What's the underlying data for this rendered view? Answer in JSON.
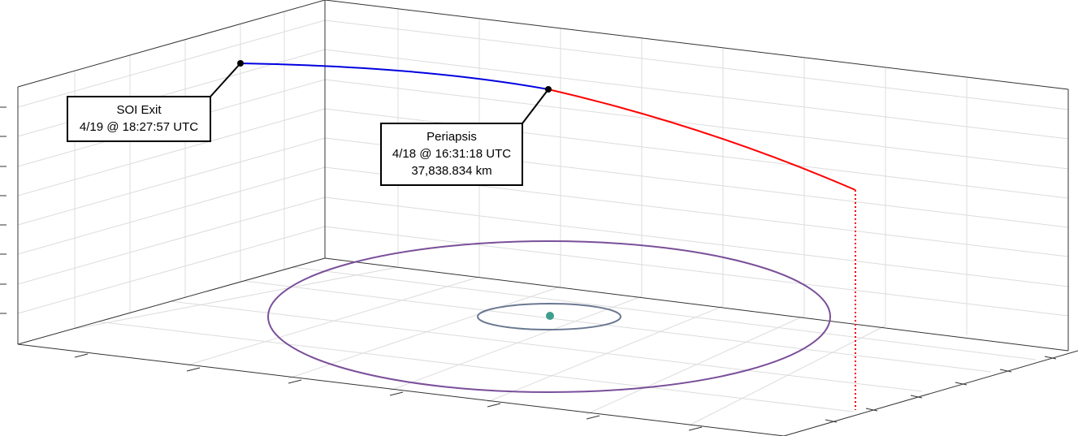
{
  "annotations": [
    {
      "title": "SOI Exit",
      "lines": [
        "4/19 @ 18:27:57 UTC"
      ]
    },
    {
      "title": "Periapsis",
      "lines": [
        "4/18 @ 16:31:18 UTC",
        "37,838.834 km"
      ]
    }
  ]
}
